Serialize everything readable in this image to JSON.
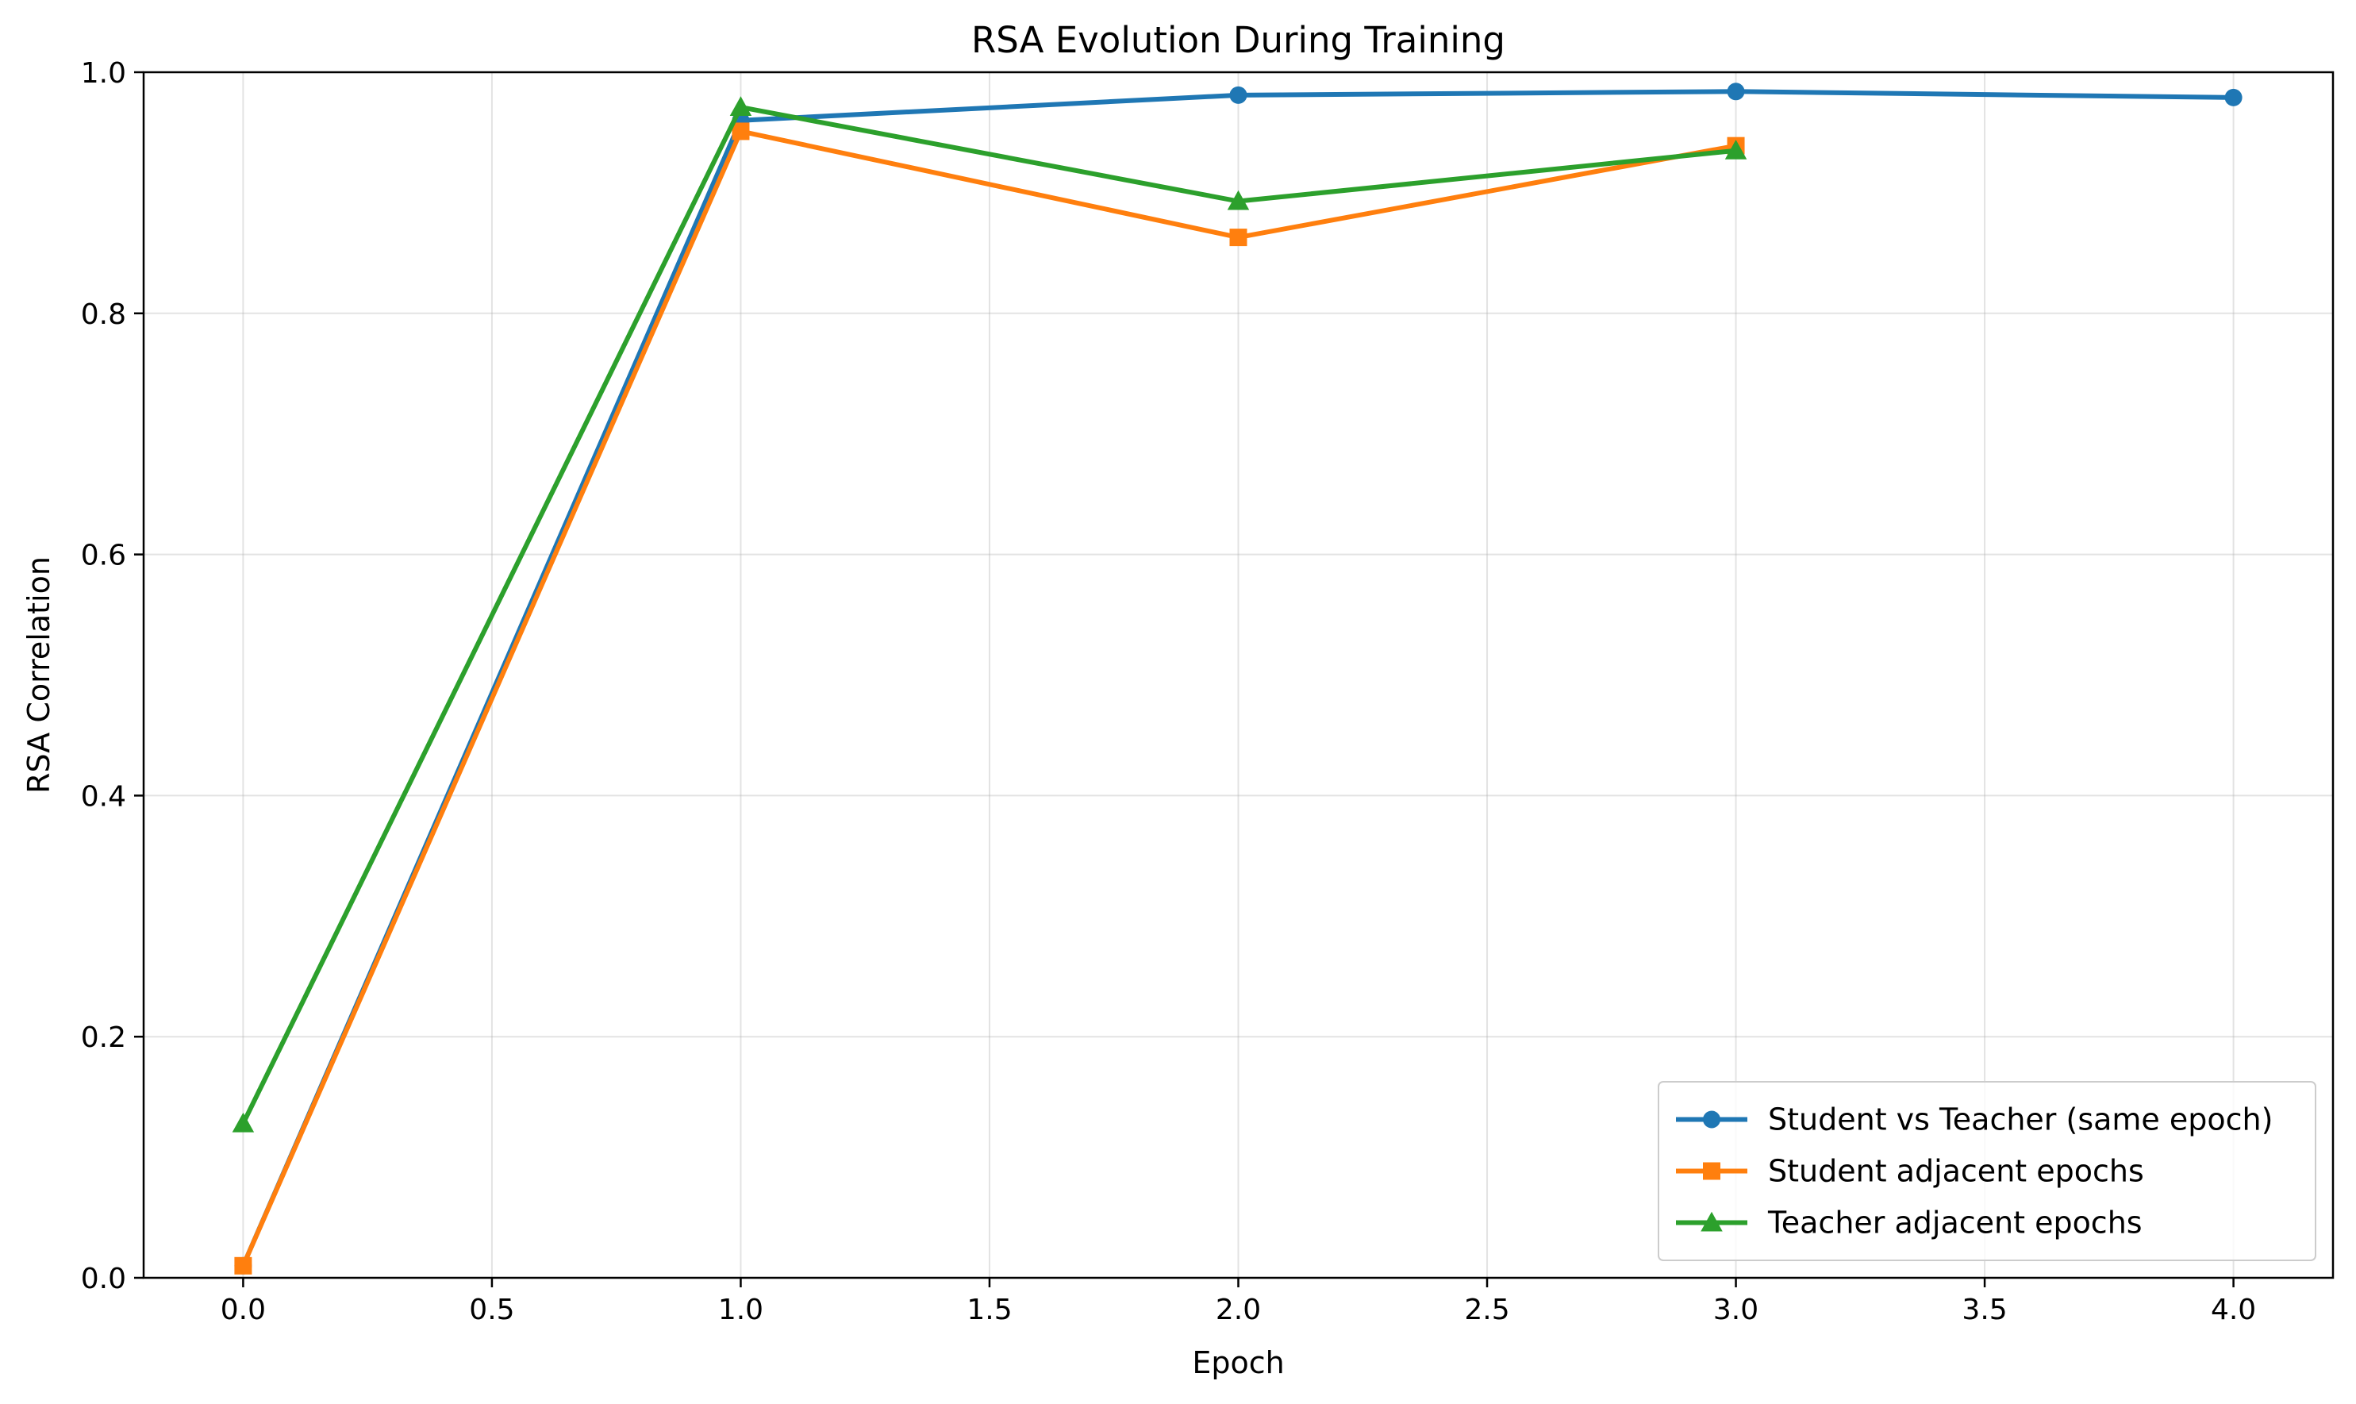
{
  "chart_data": {
    "type": "line",
    "title": "RSA Evolution During Training",
    "xlabel": "Epoch",
    "ylabel": "RSA Correlation",
    "xlim": [
      -0.2,
      4.2
    ],
    "ylim": [
      0.0,
      1.0
    ],
    "xticks": [
      0.0,
      0.5,
      1.0,
      1.5,
      2.0,
      2.5,
      3.0,
      3.5,
      4.0
    ],
    "xtick_labels": [
      "0.0",
      "0.5",
      "1.0",
      "1.5",
      "2.0",
      "2.5",
      "3.0",
      "3.5",
      "4.0"
    ],
    "yticks": [
      0.0,
      0.2,
      0.4,
      0.6,
      0.8,
      1.0
    ],
    "ytick_labels": [
      "0.0",
      "0.2",
      "0.4",
      "0.6",
      "0.8",
      "1.0"
    ],
    "grid": true,
    "legend_position": "lower-right",
    "series": [
      {
        "name": "Student vs Teacher (same epoch)",
        "color": "#1f77b4",
        "marker": "circle",
        "x": [
          0,
          1,
          2,
          3,
          4
        ],
        "y": [
          0.01,
          0.96,
          0.981,
          0.984,
          0.979
        ]
      },
      {
        "name": "Student adjacent epochs",
        "color": "#ff7f0e",
        "marker": "square",
        "x": [
          0,
          1,
          2,
          3
        ],
        "y": [
          0.01,
          0.951,
          0.863,
          0.939
        ]
      },
      {
        "name": "Teacher adjacent epochs",
        "color": "#2ca02c",
        "marker": "triangle",
        "x": [
          0,
          1,
          2,
          3
        ],
        "y": [
          0.128,
          0.971,
          0.893,
          0.935
        ]
      }
    ]
  }
}
